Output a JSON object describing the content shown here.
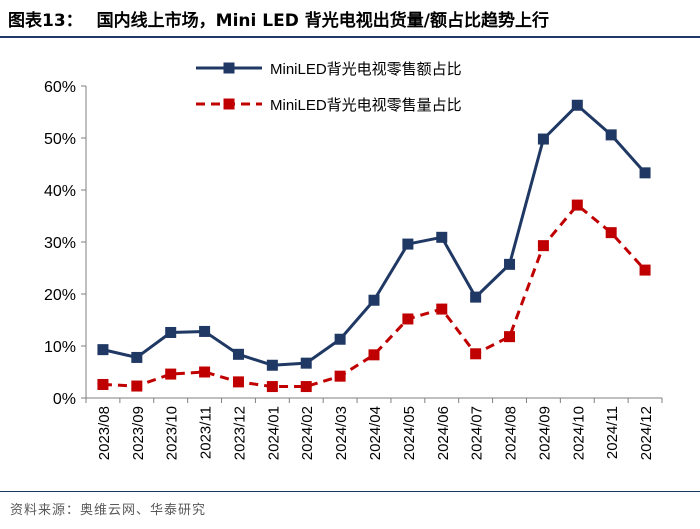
{
  "figure": {
    "label": "图表13：",
    "title": "国内线上市场，Mini LED 背光电视出货量/额占比趋势上行",
    "source": "资料来源：奥维云网、华泰研究"
  },
  "chart_data": {
    "type": "line",
    "categories": [
      "2023/08",
      "2023/09",
      "2023/10",
      "2023/11",
      "2023/12",
      "2024/01",
      "2024/02",
      "2024/03",
      "2024/04",
      "2024/05",
      "2024/06",
      "2024/07",
      "2024/08",
      "2024/09",
      "2024/10",
      "2024/11",
      "2024/12"
    ],
    "series": [
      {
        "name": "MiniLED背光电视零售额占比",
        "color": "#1f3864",
        "line_style": "solid",
        "marker": "square",
        "values": [
          9.3,
          7.8,
          12.6,
          12.8,
          8.4,
          6.3,
          6.7,
          11.3,
          18.8,
          29.6,
          30.9,
          19.4,
          25.7,
          49.8,
          56.3,
          50.6,
          43.3
        ]
      },
      {
        "name": "MiniLED背光电视零售量占比",
        "color": "#c00000",
        "line_style": "dashed",
        "marker": "square",
        "values": [
          2.6,
          2.3,
          4.6,
          5.0,
          3.1,
          2.2,
          2.2,
          4.2,
          8.3,
          15.2,
          17.1,
          8.5,
          11.8,
          29.3,
          37.1,
          31.8,
          24.6
        ]
      }
    ],
    "yticks": [
      "0%",
      "10%",
      "20%",
      "30%",
      "40%",
      "50%",
      "60%"
    ],
    "ylim": [
      0,
      60
    ],
    "xlabel": "",
    "ylabel": "",
    "grid": false,
    "legend_position": "top-right"
  }
}
